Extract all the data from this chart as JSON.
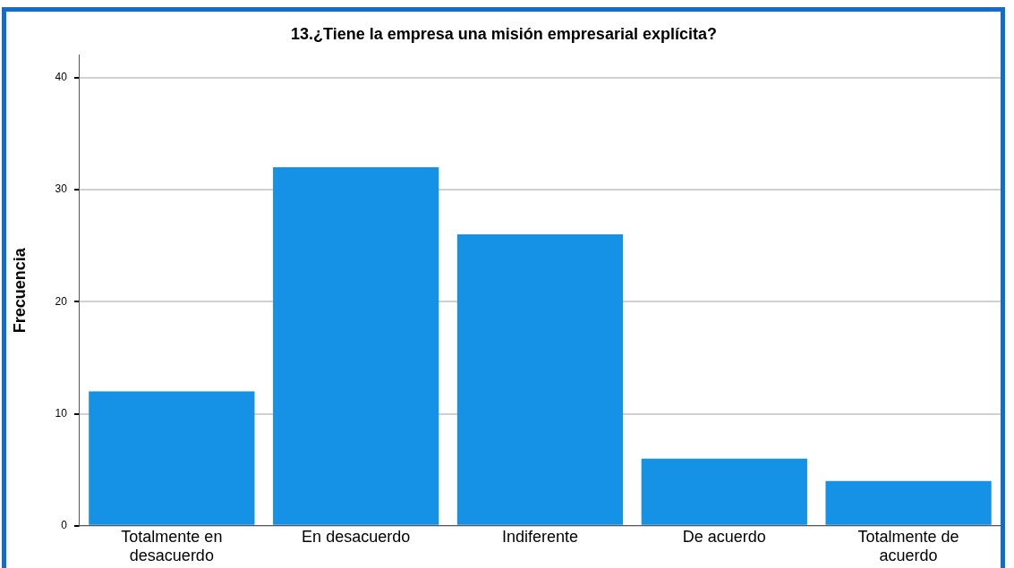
{
  "chart_data": {
    "type": "bar",
    "title": "13.¿Tiene la empresa una misión empresarial explícita?",
    "ylabel": "Frecuencia",
    "categories": [
      "Totalmente en desacuerdo",
      "En desacuerdo",
      "Indiferente",
      "De acuerdo",
      "Totalmente de acuerdo"
    ],
    "values": [
      12,
      32,
      26,
      6,
      4
    ],
    "color": "#1591e6",
    "ylim": [
      0,
      42
    ],
    "yticks": [
      0,
      10,
      20,
      30,
      40
    ],
    "grid": "y",
    "legend": false
  }
}
